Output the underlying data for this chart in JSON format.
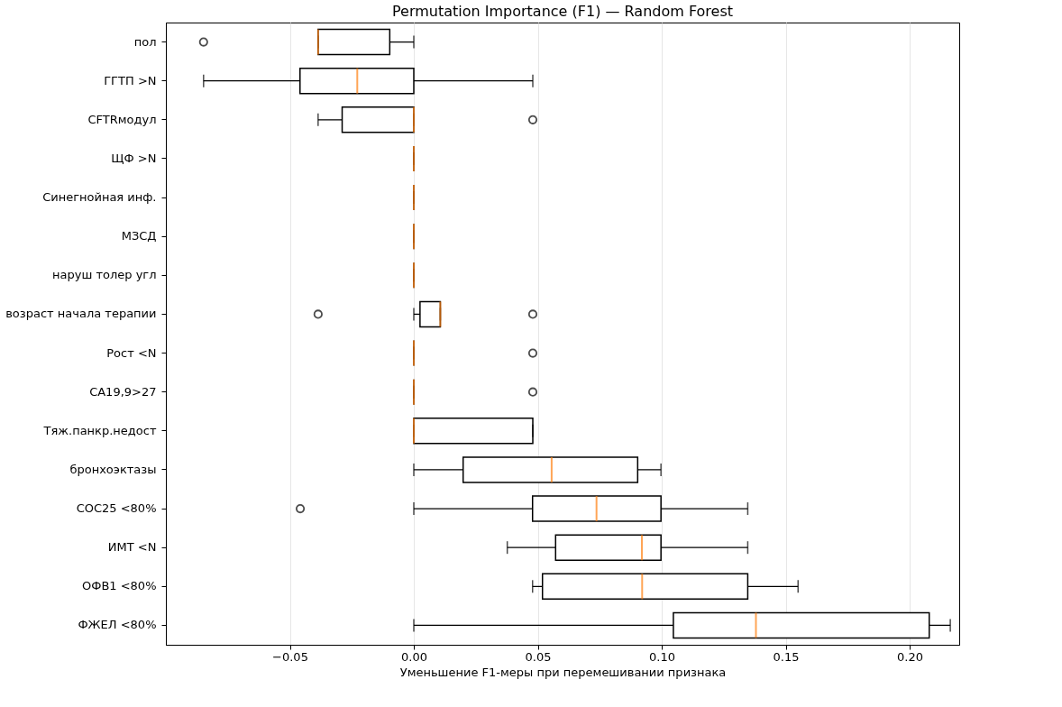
{
  "chart_data": {
    "type": "box",
    "orientation": "horizontal",
    "title": "Permutation Importance (F1) — Random Forest",
    "xlabel": "Уменьшение F1-меры при перемешивании признака",
    "categories": [
      "пол",
      "ГГТП >N",
      "CFTRмодул",
      "ЩФ >N",
      "Синегнойная инф.",
      "МЗСД",
      "наруш толер угл",
      "возраст начала терапии",
      "Рост  <N",
      "CA19,9>27",
      "Тяж.панкр.недост",
      "бронхоэктазы",
      "СОС25 <80%",
      "ИМТ <N",
      "ОФВ1 <80%",
      "ФЖЕЛ <80%"
    ],
    "boxes": [
      {
        "low": -0.0386,
        "q1": -0.0386,
        "median": -0.0386,
        "q3": -0.0097,
        "high": 0,
        "outliers": [
          -0.0848
        ]
      },
      {
        "low": -0.0848,
        "q1": -0.0459,
        "median": -0.0228,
        "q3": 0,
        "high": 0.048
      },
      {
        "low": -0.0386,
        "q1": -0.0289,
        "median": 0,
        "q3": 0,
        "high": 0,
        "outliers": [
          0.048
        ]
      },
      {
        "low": 0,
        "q1": 0,
        "median": 0,
        "q3": 0,
        "high": 0
      },
      {
        "low": 0,
        "q1": 0,
        "median": 0,
        "q3": 0,
        "high": 0
      },
      {
        "low": 0,
        "q1": 0,
        "median": 0,
        "q3": 0,
        "high": 0
      },
      {
        "low": 0,
        "q1": 0,
        "median": 0,
        "q3": 0,
        "high": 0
      },
      {
        "low": 0,
        "q1": 0.0025,
        "median": 0.0107,
        "q3": 0.0107,
        "high": 0.0107,
        "outliers": [
          -0.0386,
          0.048
        ]
      },
      {
        "low": 0,
        "q1": 0,
        "median": 0,
        "q3": 0,
        "high": 0,
        "outliers": [
          0.048
        ]
      },
      {
        "low": 0,
        "q1": 0,
        "median": 0,
        "q3": 0,
        "high": 0,
        "outliers": [
          0.048
        ]
      },
      {
        "low": 0,
        "q1": 0,
        "median": 0,
        "q3": 0.048,
        "high": 0.048
      },
      {
        "low": 0,
        "q1": 0.0199,
        "median": 0.0556,
        "q3": 0.0903,
        "high": 0.0997
      },
      {
        "low": 0,
        "q1": 0.0479,
        "median": 0.0737,
        "q3": 0.0997,
        "high": 0.1347,
        "outliers": [
          -0.0458
        ]
      },
      {
        "low": 0.0377,
        "q1": 0.0572,
        "median": 0.092,
        "q3": 0.0997,
        "high": 0.1347
      },
      {
        "low": 0.0479,
        "q1": 0.0519,
        "median": 0.0921,
        "q3": 0.1347,
        "high": 0.155
      },
      {
        "low": 0,
        "q1": 0.1047,
        "median": 0.138,
        "q3": 0.2079,
        "high": 0.2164
      }
    ],
    "xlim": [
      -0.1,
      0.22
    ],
    "xticks": [
      {
        "value": -0.05,
        "label": "−0.05"
      },
      {
        "value": 0,
        "label": "0.00"
      },
      {
        "value": 0.05,
        "label": "0.05"
      },
      {
        "value": 0.1,
        "label": "0.10"
      },
      {
        "value": 0.15,
        "label": "0.15"
      },
      {
        "value": 0.2,
        "label": "0.20"
      }
    ],
    "grid": "x"
  }
}
